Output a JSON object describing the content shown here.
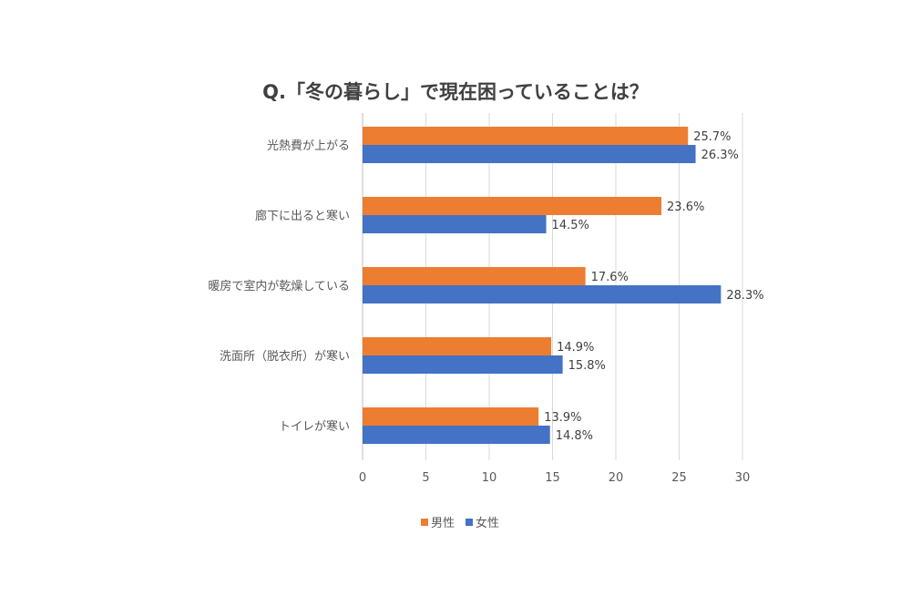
{
  "chart_data": {
    "type": "bar",
    "orientation": "horizontal",
    "title": "Q.「冬の暮らし」で現在困っていることは？",
    "categories": [
      "光熱費が上がる",
      "廊下に出ると寒い",
      "暖房で室内が乾燥している",
      "洗面所（脱衣所）が寒い",
      "トイレが寒い"
    ],
    "series": [
      {
        "name": "男性",
        "color": "#ED7D31",
        "values": [
          25.7,
          23.6,
          17.6,
          14.9,
          13.9
        ],
        "labels": [
          "25.7%",
          "23.6%",
          "17.6%",
          "14.9%",
          "13.9%"
        ]
      },
      {
        "name": "女性",
        "color": "#4472C4",
        "values": [
          26.3,
          14.5,
          28.3,
          15.8,
          14.8
        ],
        "labels": [
          "26.3%",
          "14.5%",
          "28.3%",
          "15.8%",
          "14.8%"
        ]
      }
    ],
    "xlim": [
      0,
      30
    ],
    "xticks": [
      "0",
      "5",
      "10",
      "15",
      "20",
      "25",
      "30"
    ],
    "grid": true,
    "legend_position": "bottom"
  }
}
